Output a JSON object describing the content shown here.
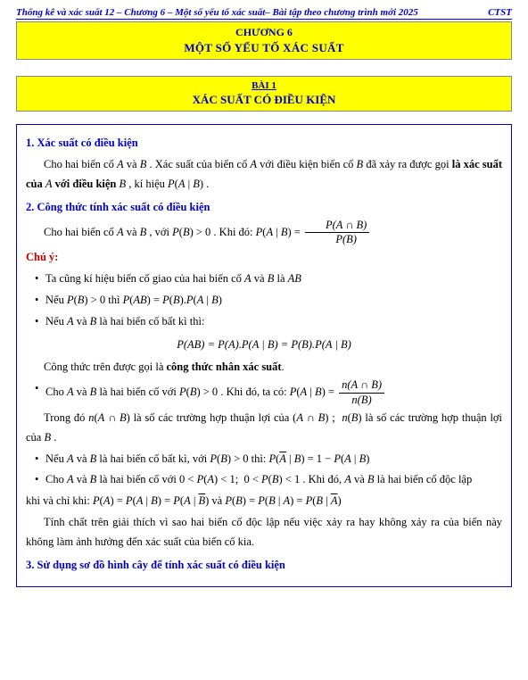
{
  "header": {
    "left": "Thống kê và xác suất  12 – Chương 6 – Một số yếu tố xác suất– Bài tập theo chương trình mới 2025",
    "right": "CTST"
  },
  "banner1": {
    "line1": "CHƯƠNG 6",
    "line2": "MỘT SỐ YẾU TỐ XÁC SUẤT"
  },
  "banner2": {
    "line1": "BÀI 1",
    "line2": "XÁC SUẤT CÓ ĐIỀU KIỆN"
  },
  "sec1_title": "1. Xác suất có điều kiện",
  "sec1_p1a": "Cho hai biến cố ",
  "sec1_p1b": " và ",
  "sec1_p1c": " . Xác suất của biến cố ",
  "sec1_p1d": " với điều kiện biến cố ",
  "sec1_p1e": " đã xảy ra được gọi ",
  "sec1_bold1": "là xác suất của ",
  "sec1_bold2": " với điều kiện ",
  "sec1_p1f": " , kí hiệu ",
  "sec2_title": "2. Công thức tính xác suất có điều kiện",
  "sec2_p1a": "Cho hai biến cố ",
  "sec2_p1b": " và ",
  "sec2_p1c": " , với ",
  "sec2_p1d": ". Khi đó: ",
  "chuY": "Chú ý:",
  "b1a": "Ta cũng kí hiệu biến cố giao của hai biến cố ",
  "b1b": " và ",
  "b1c": " là ",
  "b2a": "Nếu ",
  "b2b": " thì ",
  "b3a": "Nếu ",
  "b3b": " và ",
  "b3c": " là hai biến cố bất kì thì:",
  "eq_center": "P(AB) = P(A).P(A | B) = P(B).P(A | B)",
  "p_cong": "Công thức trên được gọi là ",
  "p_cong_bold": "công thức nhân xác suất",
  "b4a": "Cho ",
  "b4b": " và ",
  "b4c": " là hai biến cố với ",
  "b4d": ". Khi đó, ta có: ",
  "p5a": "Trong đó ",
  "p5b": " là số các trường hợp thuận lợi của ",
  "p5c": " là số các trường hợp thuận lợi của ",
  "b6a": "Nếu ",
  "b6b": " và ",
  "b6c": " là hai biến cố bất kì, với ",
  "b6d": " thì: ",
  "b7a": "Cho ",
  "b7b": " và ",
  "b7c": " là hai biến cố với ",
  "b7d": ". Khi đó, ",
  "b7e": " và ",
  "b7f": " là hai biến cố độc lập",
  "p8a": "khi và chỉ khi: ",
  "p8b": " và ",
  "p9": "Tính chất trên giải thích vì sao hai biến cố độc lập nếu việc xảy ra hay không xảy ra của biến này không làm ảnh hưởng đến xác suất của biến cố kia.",
  "sec3_title": "3. Sử dụng sơ đồ hình cây để tính xác suất có điều kiện",
  "colors": {
    "blue": "#0000cc",
    "red": "#cc0000",
    "yellow": "#ffff00",
    "black": "#000000"
  }
}
